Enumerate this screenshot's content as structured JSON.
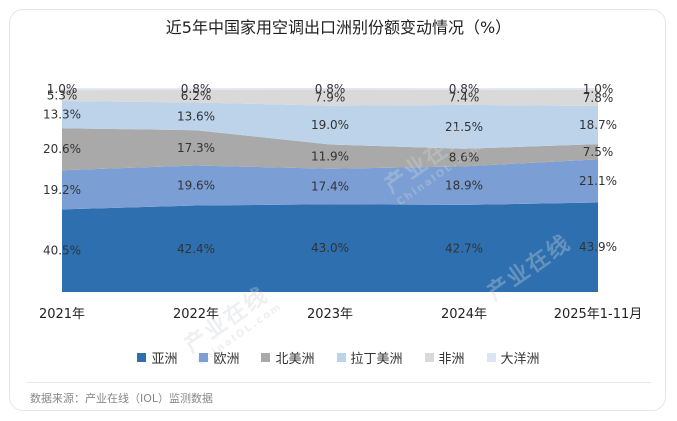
{
  "chart_data": {
    "type": "area",
    "stacked": true,
    "title": "近5年中国家用空调出口洲别份额变动情况（%）",
    "categories": [
      "2021年",
      "2022年",
      "2023年",
      "2024年",
      "2025年1-11月"
    ],
    "ylim": [
      0,
      100
    ],
    "grid": false,
    "legend_position": "bottom",
    "series": [
      {
        "name": "亚洲",
        "color": "#2e6faf",
        "values": [
          40.5,
          42.4,
          43.0,
          42.7,
          43.9
        ],
        "labels": [
          "40.5%",
          "42.4%",
          "43.0%",
          "42.7%",
          "43.9%"
        ]
      },
      {
        "name": "欧洲",
        "color": "#7b9fd4",
        "values": [
          19.2,
          19.6,
          17.4,
          18.9,
          21.1
        ],
        "labels": [
          "19.2%",
          "19.6%",
          "17.4%",
          "18.9%",
          "21.1%"
        ]
      },
      {
        "name": "北美洲",
        "color": "#a9a9a9",
        "values": [
          20.6,
          17.3,
          11.9,
          8.6,
          7.5
        ],
        "labels": [
          "20.6%",
          "17.3%",
          "11.9%",
          "8.6%",
          "7.5%"
        ]
      },
      {
        "name": "拉丁美洲",
        "color": "#bcd3ea",
        "values": [
          13.3,
          13.6,
          19.0,
          21.5,
          18.7
        ],
        "labels": [
          "13.3%",
          "13.6%",
          "19.0%",
          "21.5%",
          "18.7%"
        ]
      },
      {
        "name": "非洲",
        "color": "#d9d9d9",
        "values": [
          5.3,
          6.2,
          7.9,
          7.4,
          7.8
        ],
        "labels": [
          "5.3%",
          "6.2%",
          "7.9%",
          "7.4%",
          "7.8%"
        ]
      },
      {
        "name": "大洋洲",
        "color": "#dde5f4",
        "values": [
          1.0,
          0.8,
          0.8,
          0.8,
          1.0
        ],
        "labels": [
          "1.0%",
          "0.8%",
          "0.8%",
          "0.8%",
          "1.0%"
        ]
      }
    ]
  },
  "source_text": "数据来源：产业在线（IOL）监测数据",
  "watermark_text": "产业在线",
  "watermark_sub_text": "ChinaIOL.com"
}
